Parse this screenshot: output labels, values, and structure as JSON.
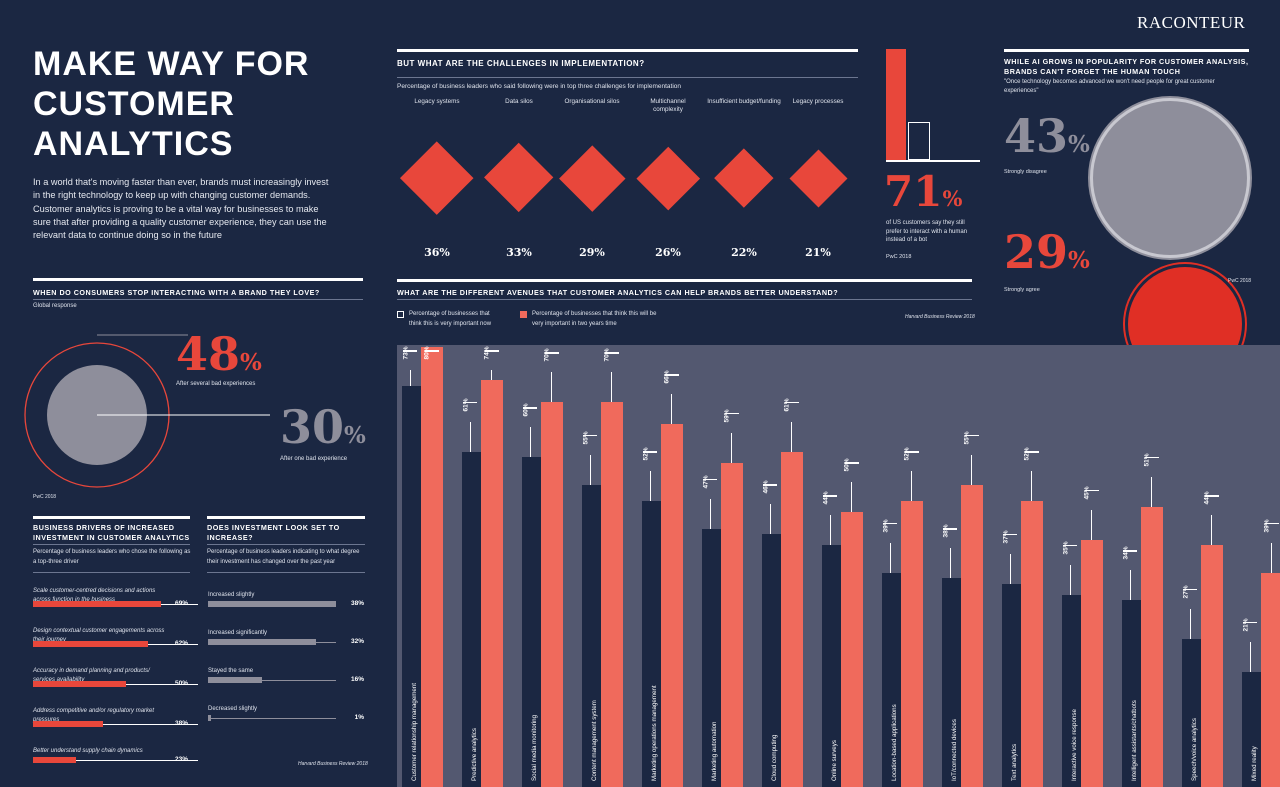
{
  "logo": "RACONTEUR",
  "title": "MAKE WAY FOR CUSTOMER ANALYTICS",
  "intro": "In a world that's moving faster than ever, brands must increasingly invest in the right technology to keep up with changing customer demands. Customer analytics is proving to be a vital way for businesses to make sure that after providing a quality customer experience, they can use the relevant data to continue doing so in the future",
  "colors": {
    "background": "#1b2742",
    "accent": "#e8473b",
    "bar_light": "#f06a5c",
    "grey": "#8e8e9b",
    "panel": "#535870"
  },
  "challenges": {
    "title": "BUT WHAT ARE THE CHALLENGES IN IMPLEMENTATION?",
    "subtitle": "Percentage of business leaders who said following were in top three challenges for implementation"
  },
  "human": {
    "value": "71",
    "unit": "%",
    "caption": "of US customers say they still prefer to interact with a human instead of a bot",
    "source": "PwC 2018"
  },
  "ai_human": {
    "title": "WHILE AI GROWS IN POPULARITY FOR CUSTOMER ANALYSIS, BRANDS CAN'T FORGET THE HUMAN TOUCH",
    "quote": "\"Once technology becomes advanced we won't need people for great customer experiences\"",
    "disagree_value": "43",
    "disagree_label": "Strongly disagree",
    "agree_value": "29",
    "agree_label": "Strongly agree",
    "unit": "%",
    "source": "PwC 2018"
  },
  "stop": {
    "title": "WHEN DO CONSUMERS STOP INTERACTING WITH A BRAND THEY LOVE?",
    "subtitle": "Global response",
    "several_value": "48",
    "several_label": "After several bad experiences",
    "one_value": "30",
    "one_label": "After one bad experience",
    "unit": "%",
    "source": "PwC 2018"
  },
  "drivers": {
    "title": "BUSINESS DRIVERS OF INCREASED INVESTMENT IN CUSTOMER ANALYTICS",
    "subtitle": "Percentage of business leaders who chose the following as a top-three driver"
  },
  "investment": {
    "title": "DOES INVESTMENT LOOK SET TO INCREASE?",
    "subtitle": "Percentage of business leaders indicating to what degree their investment has changed over the past year",
    "source": "Harvard Business Review 2018"
  },
  "avenues": {
    "title": "WHAT ARE THE DIFFERENT AVENUES THAT CUSTOMER ANALYTICS CAN HELP BRANDS BETTER UNDERSTAND?",
    "legend_now": "Percentage of businesses that think this is very important now",
    "legend_future": "Percentage of businesses that think this will be very important in two years time",
    "source": "Harvard Business Review 2018"
  },
  "chart_data": [
    {
      "type": "bar",
      "id": "challenges",
      "categories": [
        "Legacy systems",
        "Data silos",
        "Organisational silos",
        "Multichannel complexity",
        "Insufficient budget/funding",
        "Legacy processes"
      ],
      "values": [
        36,
        33,
        29,
        26,
        22,
        21
      ],
      "labels": [
        "36%",
        "33%",
        "29%",
        "26%",
        "22%",
        "21%"
      ]
    },
    {
      "type": "bar",
      "id": "human",
      "categories": [
        "human",
        "bot"
      ],
      "values": [
        71,
        29
      ]
    },
    {
      "type": "pie",
      "id": "ai_human",
      "categories": [
        "Strongly disagree",
        "Strongly agree"
      ],
      "values": [
        43,
        29
      ]
    },
    {
      "type": "pie",
      "id": "stop",
      "categories": [
        "After several bad experiences",
        "After one bad experience"
      ],
      "values": [
        48,
        30
      ]
    },
    {
      "type": "bar",
      "id": "drivers",
      "orientation": "horizontal",
      "categories": [
        "Scale customer-centred decisions and actions across function in the business",
        "Design contextual customer engagements across their journey",
        "Accuracy in demand planning and products/ services availability",
        "Address competitive and/or regulatory market pressures",
        "Better understand supply chain dynamics"
      ],
      "values": [
        69,
        62,
        50,
        38,
        23
      ],
      "labels": [
        "69%",
        "62%",
        "50%",
        "38%",
        "23%"
      ]
    },
    {
      "type": "bar",
      "id": "investment",
      "orientation": "horizontal",
      "categories": [
        "Increased slightly",
        "Increased significantly",
        "Stayed the same",
        "Decreased slightly"
      ],
      "values": [
        38,
        32,
        16,
        1
      ],
      "labels": [
        "38%",
        "32%",
        "16%",
        "1%"
      ]
    },
    {
      "type": "bar",
      "id": "avenues",
      "categories": [
        "Customer relationship management",
        "Predictive analytics",
        "Social media monitoring",
        "Content management system",
        "Marketing operations management",
        "Marketing automation",
        "Cloud computing",
        "Online surveys",
        "Location-based applications",
        "IoT/connected devices",
        "Text analytics",
        "Interactive voice response",
        "Intelligent assistants/chatbots",
        "Speech/voice analytics",
        "Mixed reality"
      ],
      "series": [
        {
          "name": "Percentage of businesses that think this is very important now",
          "values": [
            73,
            61,
            60,
            55,
            52,
            47,
            46,
            44,
            39,
            38,
            37,
            35,
            34,
            27,
            21
          ],
          "labels": [
            "73%",
            "61%",
            "60%",
            "55%",
            "52%",
            "47%",
            "46%",
            "44%",
            "39%",
            "38%",
            "37%",
            "35%",
            "34%",
            "27%",
            "21%"
          ]
        },
        {
          "name": "Percentage of businesses that think this will be very important in two years time",
          "values": [
            80,
            74,
            70,
            70,
            66,
            59,
            61,
            50,
            52,
            55,
            52,
            45,
            51,
            44,
            39
          ],
          "labels": [
            "80%",
            "74%",
            "70%",
            "70%",
            "66%",
            "59%",
            "61%",
            "50%",
            "52%",
            "55%",
            "52%",
            "45%",
            "51%",
            "44%",
            "39%"
          ]
        }
      ]
    }
  ]
}
